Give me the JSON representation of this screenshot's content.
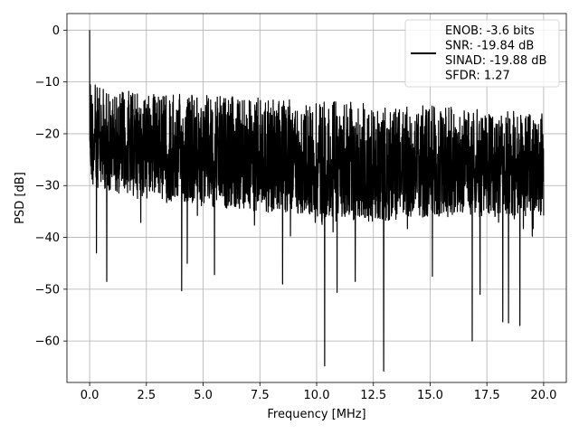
{
  "chart_data": {
    "type": "line",
    "title": "",
    "xlabel": "Frequency [MHz]",
    "ylabel": "PSD [dB]",
    "xlim": [
      -1.0,
      21.0
    ],
    "ylim": [
      -68.0,
      3.2
    ],
    "xticks": [
      0.0,
      2.5,
      5.0,
      7.5,
      10.0,
      12.5,
      15.0,
      17.5,
      20.0
    ],
    "xtick_labels": [
      "0.0",
      "2.5",
      "5.0",
      "7.5",
      "10.0",
      "12.5",
      "15.0",
      "17.5",
      "20.0"
    ],
    "yticks": [
      0,
      -10,
      -20,
      -30,
      -40,
      -50,
      -60
    ],
    "ytick_labels": [
      "0",
      "−10",
      "−20",
      "−30",
      "−40",
      "−50",
      "−60"
    ],
    "grid": true,
    "legend_placement": "top-right",
    "legend_lines": [
      "ENOB: -3.6 bits",
      "SNR: -19.84 dB",
      "SINAD: -19.88 dB",
      "SFDR: 1.27"
    ],
    "series": [
      {
        "color": "#000000",
        "x_start": 0.0,
        "x_end": 20.0,
        "upper_envelope_x": [
          0.0,
          0.05,
          0.1,
          0.5,
          1.0,
          2.0,
          3.0,
          5.0,
          7.5,
          10.0,
          12.5,
          15.0,
          17.5,
          20.0
        ],
        "upper_envelope_y": [
          0.0,
          -8.0,
          -10.0,
          -11.0,
          -11.5,
          -11.5,
          -12.0,
          -12.5,
          -13.0,
          -13.5,
          -14.0,
          -14.5,
          -15.0,
          -16.0
        ],
        "lower_envelope_x": [
          0.0,
          2.5,
          5.0,
          7.5,
          10.0,
          12.5,
          15.0,
          17.5,
          20.0
        ],
        "lower_envelope_y": [
          -30.0,
          -33.0,
          -34.0,
          -35.0,
          -36.0,
          -37.0,
          -36.0,
          -36.0,
          -36.0
        ],
        "dips": [
          {
            "x": 0.3,
            "y": -43.0
          },
          {
            "x": 0.75,
            "y": -48.5
          },
          {
            "x": 4.05,
            "y": -50.3
          },
          {
            "x": 4.3,
            "y": -45.0
          },
          {
            "x": 5.5,
            "y": -47.2
          },
          {
            "x": 8.5,
            "y": -49.0
          },
          {
            "x": 10.35,
            "y": -64.8
          },
          {
            "x": 10.9,
            "y": -50.6
          },
          {
            "x": 11.7,
            "y": -48.5
          },
          {
            "x": 12.95,
            "y": -65.8
          },
          {
            "x": 15.1,
            "y": -47.5
          },
          {
            "x": 17.2,
            "y": -51.0
          },
          {
            "x": 16.85,
            "y": -60.0
          },
          {
            "x": 18.2,
            "y": -56.3
          },
          {
            "x": 18.45,
            "y": -56.5
          },
          {
            "x": 18.95,
            "y": -57.0
          }
        ]
      }
    ]
  }
}
